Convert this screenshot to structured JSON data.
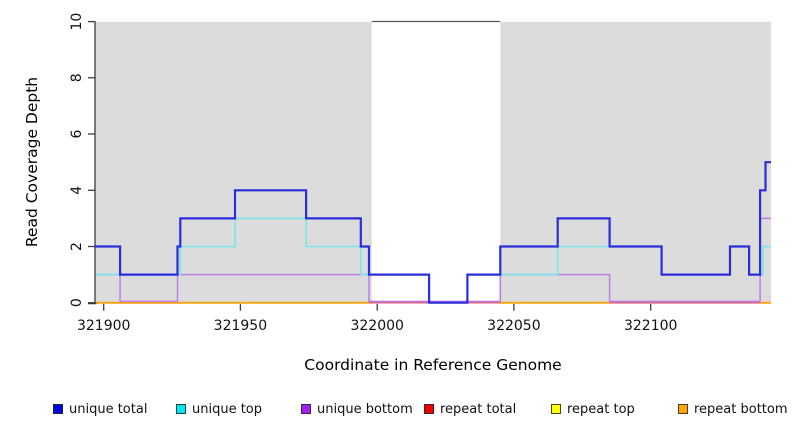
{
  "chart_data": {
    "type": "step-line",
    "title": "",
    "xlabel": "Coordinate in Reference Genome",
    "ylabel": "Read Coverage Depth",
    "xlim": [
      321897,
      322144
    ],
    "ylim": [
      0,
      10
    ],
    "xticks": [
      321900,
      321950,
      322000,
      322050,
      322100
    ],
    "yticks": [
      0,
      2,
      4,
      6,
      8,
      10
    ],
    "grid": false,
    "legend_position": "bottom",
    "background_shading": {
      "color": "#dcdcdc",
      "x_ranges": [
        [
          321897,
          321998
        ],
        [
          322045,
          322144
        ]
      ]
    },
    "series": [
      {
        "name": "unique total",
        "color": "#0000e0",
        "stroke": "#2c2cdc",
        "width": 2.2,
        "points": [
          [
            321897,
            2
          ],
          [
            321906,
            1
          ],
          [
            321927,
            2
          ],
          [
            321928,
            3
          ],
          [
            321948,
            4
          ],
          [
            321974,
            3
          ],
          [
            321994,
            2
          ],
          [
            321997,
            1
          ],
          [
            322019,
            0
          ],
          [
            322033,
            1
          ],
          [
            322045,
            2
          ],
          [
            322066,
            3
          ],
          [
            322085,
            2
          ],
          [
            322104,
            1
          ],
          [
            322129,
            2
          ],
          [
            322136,
            1
          ],
          [
            322140,
            4
          ],
          [
            322142,
            5
          ],
          [
            322144,
            5
          ]
        ]
      },
      {
        "name": "unique top",
        "color": "#00e5ee",
        "stroke": "#79e6ec",
        "width": 1.6,
        "points": [
          [
            321897,
            1
          ],
          [
            321928,
            2
          ],
          [
            321948,
            3
          ],
          [
            321974,
            2
          ],
          [
            321994,
            1
          ],
          [
            322019,
            0
          ],
          [
            322033,
            1
          ],
          [
            322066,
            2
          ],
          [
            322104,
            1
          ],
          [
            322129,
            2
          ],
          [
            322136,
            1
          ],
          [
            322141,
            2
          ],
          [
            322144,
            2
          ]
        ]
      },
      {
        "name": "unique bottom",
        "color": "#a020f0",
        "stroke": "#c17be7",
        "width": 1.5,
        "points": [
          [
            321897,
            1
          ],
          [
            321906,
            0
          ],
          [
            321927,
            1
          ],
          [
            321997,
            0
          ],
          [
            322045,
            1
          ],
          [
            322085,
            0
          ],
          [
            322140,
            3
          ],
          [
            322144,
            3
          ]
        ]
      },
      {
        "name": "repeat total",
        "color": "#ee0000",
        "stroke": "#d9607e",
        "width": 1.5,
        "points": [
          [
            321897,
            0
          ],
          [
            322144,
            0
          ]
        ]
      },
      {
        "name": "repeat top",
        "color": "#ffff00",
        "stroke": "#ffff00",
        "width": 1.4,
        "points": [
          [
            321897,
            0
          ],
          [
            322144,
            0
          ]
        ]
      },
      {
        "name": "repeat bottom",
        "color": "#ffa500",
        "stroke": "#ffa511",
        "width": 2,
        "segments": [
          [
            [
              321897,
              0
            ],
            [
              321997,
              0
            ]
          ],
          [
            [
              322045,
              0
            ],
            [
              322085,
              0
            ]
          ],
          [
            [
              322140,
              0
            ],
            [
              322144,
              0
            ]
          ]
        ]
      }
    ]
  },
  "legend": {
    "items": [
      {
        "label": "unique total",
        "color": "#0000e0"
      },
      {
        "label": "unique top",
        "color": "#00e5ee"
      },
      {
        "label": "unique bottom",
        "color": "#a020f0"
      },
      {
        "label": "repeat total",
        "color": "#ee0000"
      },
      {
        "label": "repeat top",
        "color": "#ffff00"
      },
      {
        "label": "repeat bottom",
        "color": "#ffa500"
      }
    ]
  }
}
